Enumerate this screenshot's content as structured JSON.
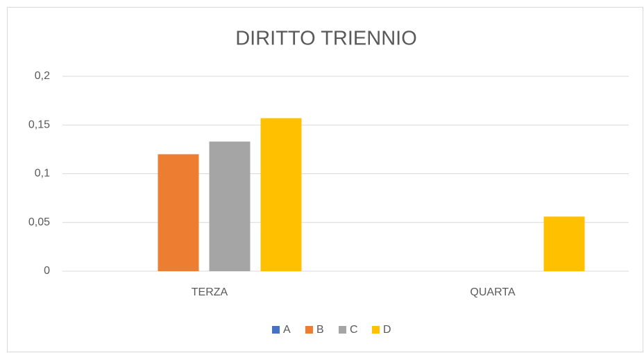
{
  "chart_data": {
    "type": "bar",
    "title": "DIRITTO TRIENNIO",
    "categories": [
      "TERZA",
      "QUARTA"
    ],
    "series": [
      {
        "name": "A",
        "color": "#4472c4",
        "values": [
          0,
          0
        ]
      },
      {
        "name": "B",
        "color": "#ed7d31",
        "values": [
          0.12,
          0
        ]
      },
      {
        "name": "C",
        "color": "#a5a5a5",
        "values": [
          0.133,
          0
        ]
      },
      {
        "name": "D",
        "color": "#ffc000",
        "values": [
          0.157,
          0.056
        ]
      }
    ],
    "ylim": [
      0,
      0.2
    ],
    "yticks": [
      0,
      {
        "value": 0.05,
        "label": "0,05"
      },
      {
        "value": 0.1,
        "label": "0,1"
      },
      {
        "value": 0.15,
        "label": "0,15"
      },
      {
        "value": 0.2,
        "label": "0,2"
      }
    ],
    "grid": true,
    "legend": "bottom"
  }
}
